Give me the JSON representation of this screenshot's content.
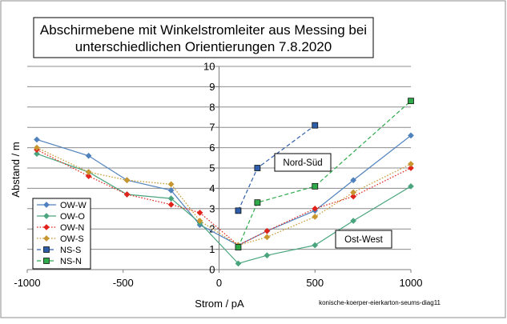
{
  "chart_data": {
    "type": "line",
    "title_lines": [
      "Abschirmebene mit Winkelstromleiter aus Messing bei",
      "unterschiedlichen Orientierungen  7.8.2020"
    ],
    "xlabel": "Strom / pA",
    "ylabel": "Abstand / m",
    "xlim": [
      -1000,
      1000
    ],
    "ylim": [
      0,
      10
    ],
    "xticks": [
      -1000,
      -500,
      0,
      500,
      1000
    ],
    "yticks": [
      0,
      1,
      2,
      3,
      4,
      5,
      6,
      7,
      8,
      9,
      10
    ],
    "footnote": "konische-koerper-eierkarton-seums-diag11",
    "grid": "horizontal",
    "legend_position": "lower-left",
    "annotations": [
      {
        "text": "Nord-Süd",
        "x": 490,
        "y": 5.8
      },
      {
        "text": "Ost-West",
        "x": 640,
        "y": 1.6
      }
    ],
    "series": [
      {
        "name": "OW-W",
        "color": "#4F81BD",
        "marker": "diamond",
        "dash": "solid",
        "x": [
          -950,
          -680,
          -480,
          -250,
          -100,
          100,
          250,
          500,
          700,
          1000
        ],
        "y": [
          6.4,
          5.6,
          4.4,
          3.9,
          2.2,
          1.2,
          1.9,
          2.9,
          4.4,
          6.6
        ]
      },
      {
        "name": "OW-O",
        "color": "#4AA57E",
        "marker": "diamond",
        "dash": "solid",
        "x": [
          -950,
          -680,
          -480,
          -250,
          -100,
          100,
          250,
          500,
          700,
          1000
        ],
        "y": [
          5.7,
          4.8,
          3.7,
          3.5,
          2.3,
          0.3,
          0.7,
          1.2,
          2.4,
          4.1
        ]
      },
      {
        "name": "OW-N",
        "color": "#E0241C",
        "marker": "diamond",
        "dash": "dotted",
        "x": [
          -950,
          -680,
          -480,
          -250,
          -100,
          100,
          250,
          500,
          700,
          1000
        ],
        "y": [
          5.9,
          4.6,
          3.7,
          3.2,
          2.8,
          1.2,
          1.9,
          3.0,
          3.6,
          5.0
        ]
      },
      {
        "name": "OW-S",
        "color": "#C8962E",
        "marker": "diamond",
        "dash": "dotted",
        "x": [
          -950,
          -680,
          -480,
          -250,
          -100,
          100,
          250,
          500,
          700,
          1000
        ],
        "y": [
          6.0,
          4.8,
          4.4,
          4.2,
          2.4,
          1.2,
          1.6,
          2.6,
          3.8,
          5.2
        ]
      },
      {
        "name": "NS-S",
        "color": "#2E5EAA",
        "marker": "square",
        "dash": "dashed",
        "x": [
          100,
          200,
          500
        ],
        "y": [
          2.9,
          5.0,
          7.1
        ]
      },
      {
        "name": "NS-N",
        "color": "#2EAA4A",
        "marker": "square",
        "dash": "dashed",
        "x": [
          100,
          200,
          500,
          1000
        ],
        "y": [
          1.1,
          3.3,
          4.1,
          8.3
        ]
      }
    ]
  }
}
